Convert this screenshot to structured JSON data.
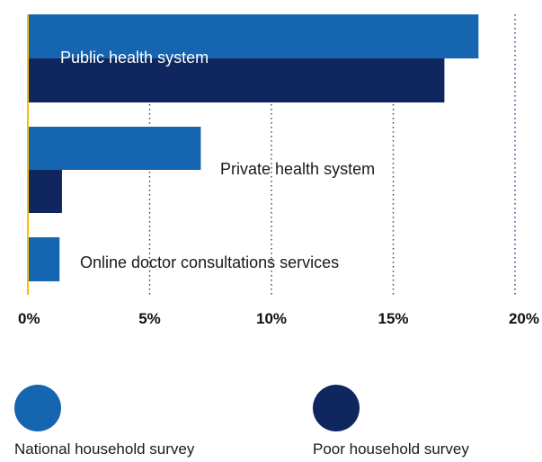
{
  "chart_data": {
    "type": "bar",
    "orientation": "horizontal",
    "categories": [
      "Public health system",
      "Private health system",
      "Online doctor consultations services"
    ],
    "series": [
      {
        "name": "National household survey",
        "color": "#1565b0",
        "values": [
          18.5,
          7.1,
          1.3
        ]
      },
      {
        "name": "Poor household survey",
        "color": "#10265e",
        "values": [
          17.1,
          1.4,
          0
        ]
      }
    ],
    "xlim": [
      0,
      20
    ],
    "ticks": [
      0,
      5,
      10,
      15,
      20
    ],
    "tick_labels": [
      "0%",
      "5%",
      "10%",
      "15%",
      "20%"
    ],
    "grid": "vertical dotted",
    "legend_position": "bottom",
    "axis_color": "#f2c400"
  }
}
